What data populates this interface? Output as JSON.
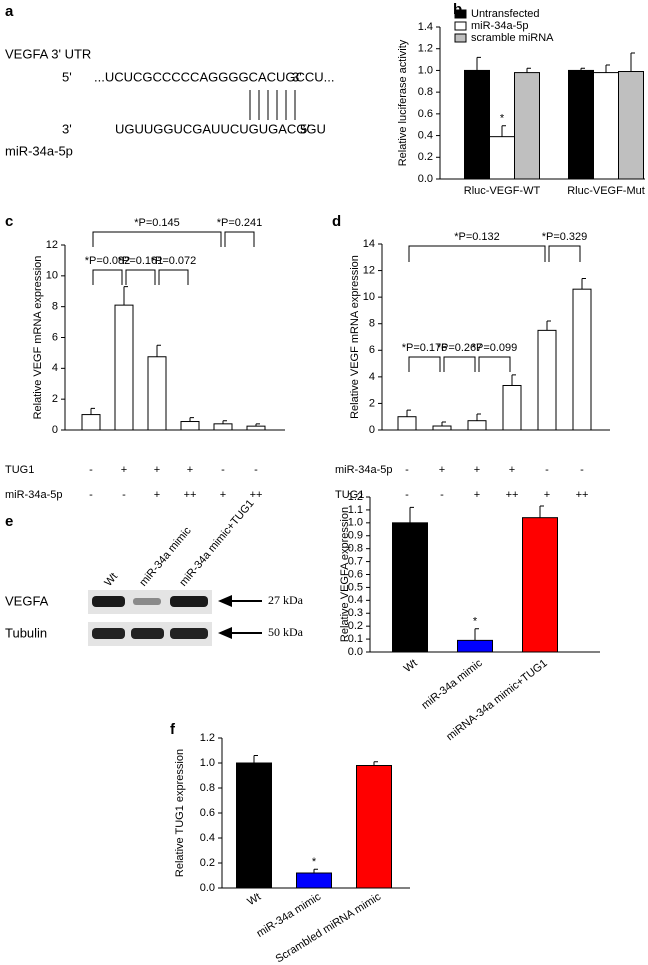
{
  "panel_a": {
    "panel": "a",
    "utr_label": "VEGFA 3' UTR",
    "utr_end5": "5'",
    "utr_seq": "...UCUCGCCCCCAGGGGCACUGCCU...",
    "utr_end3": "3'",
    "mirna_end3": "3'",
    "mirna_seq": "UGUUGGUCGAUUCUGUGACGGU",
    "mirna_end5": "5'",
    "mirna_label": "miR-34a-5p"
  },
  "blot": {
    "panel": "e",
    "lanes": [
      "Wt",
      "miR-34a mimic",
      "miR-34a mimic+TUG1"
    ],
    "rows": [
      "VEGFA",
      "Tubulin"
    ],
    "sizes": [
      "27 kDa",
      "50 kDa"
    ]
  },
  "chart_data": [
    {
      "panel": "b",
      "type": "bar",
      "y_label": "Relative luciferase activity",
      "categories": [
        "Rluc-VEGF-WT",
        "Rluc-VEGF-Mut"
      ],
      "series": [
        {
          "name": "Untransfected",
          "color": "#000000",
          "values": [
            1.0,
            1.0
          ],
          "errors": [
            0.12,
            0.02
          ]
        },
        {
          "name": "miR-34a-5p",
          "color": "#ffffff",
          "values": [
            0.39,
            0.98
          ],
          "errors": [
            0.1,
            0.07
          ]
        },
        {
          "name": "scramble miRNA",
          "color": "#bfbfbf",
          "values": [
            0.98,
            0.99
          ],
          "errors": [
            0.04,
            0.17
          ]
        }
      ],
      "ylim": [
        0,
        1.4
      ],
      "yticks": [
        {
          "value": 0,
          "label": "0.0"
        },
        0.2,
        0.4,
        0.6,
        0.8,
        {
          "value": 1,
          "label": "1.0"
        },
        1.2,
        1.4
      ],
      "star": "*"
    },
    {
      "panel": "c",
      "type": "bar",
      "y_label": "Relative VEGF mRNA expression",
      "color": "#ffffff",
      "values": [
        1.0,
        8.1,
        4.75,
        0.55,
        0.4,
        0.25
      ],
      "errors": [
        0.4,
        1.2,
        0.75,
        0.25,
        0.2,
        0.15
      ],
      "ylim": [
        0,
        12
      ],
      "yticks": [
        0,
        2,
        4,
        6,
        8,
        10,
        12
      ],
      "row_labels": [
        {
          "name": "TUG1",
          "marks": [
            "-",
            "+",
            "+",
            "+",
            "-",
            "-"
          ]
        },
        {
          "name": "miR-34a-5p",
          "marks": [
            "-",
            "-",
            "+",
            "++",
            "+",
            "++"
          ]
        }
      ],
      "comparisons": [
        "*P=0.082",
        "*P=0.161",
        "*P=0.072",
        "*P=0.145",
        "*P=0.241"
      ]
    },
    {
      "panel": "d",
      "type": "bar",
      "y_label": "Relative VEGF mRNA expression",
      "color": "#ffffff",
      "values": [
        1.0,
        0.3,
        0.7,
        3.35,
        7.5,
        10.6
      ],
      "errors": [
        0.5,
        0.3,
        0.5,
        0.8,
        0.7,
        0.8
      ],
      "ylim": [
        0,
        14
      ],
      "yticks": [
        0,
        2,
        4,
        6,
        8,
        10,
        12,
        14
      ],
      "row_labels": [
        {
          "name": "miR-34a-5p",
          "marks": [
            "-",
            "+",
            "+",
            "+",
            "-",
            "-"
          ]
        },
        {
          "name": "TUG1",
          "marks": [
            "-",
            "-",
            "+",
            "++",
            "+",
            "++"
          ]
        }
      ],
      "comparisons": [
        "*P=0.176",
        "*P=0.267",
        "*P=0.099",
        "*P=0.132",
        "*P=0.329"
      ]
    },
    {
      "type": "bar",
      "y_label": "Relative VEGFA expression",
      "categories": [
        "Wt",
        "miR-34a mimic",
        "miRNA-34a mimic+TUG1"
      ],
      "colors": [
        "#000000",
        "#0000ff",
        "#ff0000"
      ],
      "values": [
        1.0,
        0.09,
        1.04
      ],
      "errors": [
        0.12,
        0.09,
        0.09
      ],
      "ylim": [
        0,
        1.2
      ],
      "yticks": [
        {
          "value": 0,
          "label": "0.0"
        },
        0.1,
        0.2,
        0.3,
        0.4,
        0.5,
        0.6,
        0.7,
        0.8,
        0.9,
        {
          "value": 1,
          "label": "1.0"
        },
        1.1,
        1.2
      ],
      "star": "*"
    },
    {
      "panel": "f",
      "type": "bar",
      "y_label": "Relative TUG1 expression",
      "categories": [
        "Wt",
        "miR-34a mimic",
        "Scrambled miRNA mimic"
      ],
      "colors": [
        "#000000",
        "#0000ff",
        "#ff0000"
      ],
      "values": [
        1.0,
        0.12,
        0.98
      ],
      "errors": [
        0.06,
        0.03,
        0.03
      ],
      "ylim": [
        0,
        1.2
      ],
      "yticks": [
        {
          "value": 0,
          "label": "0.0"
        },
        0.2,
        0.4,
        0.6,
        0.8,
        {
          "value": 1,
          "label": "1.0"
        },
        1.2
      ],
      "star": "*"
    }
  ]
}
